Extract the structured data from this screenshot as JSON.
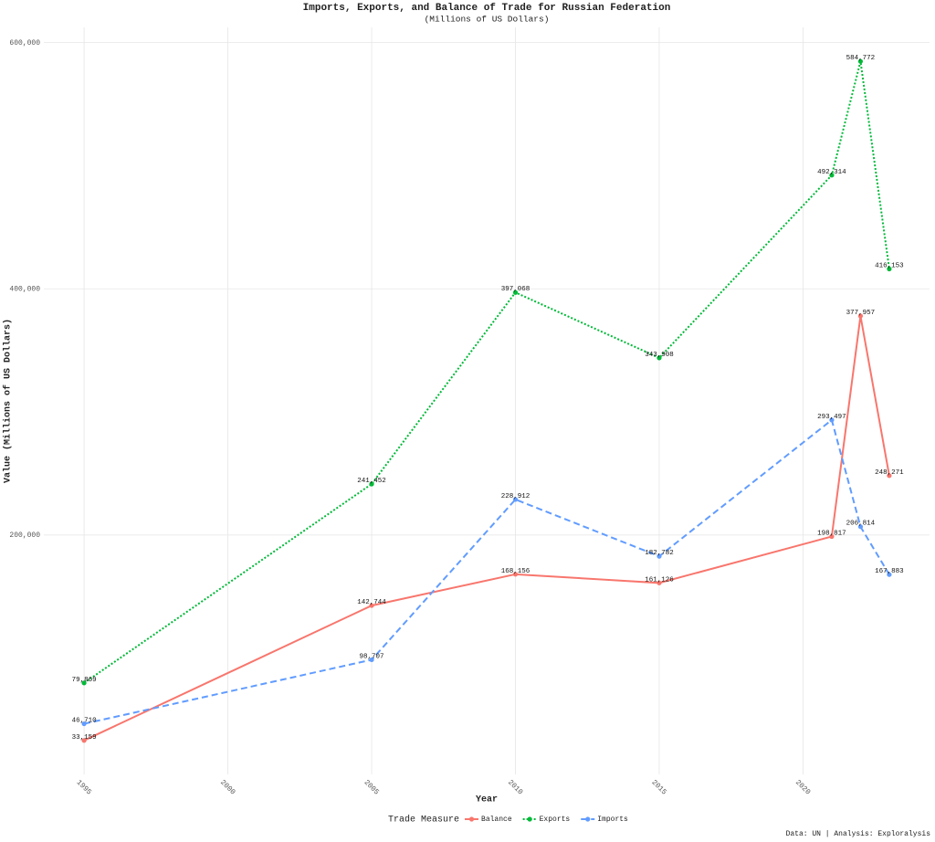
{
  "chart_data": {
    "type": "line",
    "title": "Imports, Exports, and Balance of Trade for Russian Federation",
    "subtitle": "(Millions of US Dollars)",
    "x_label": "Year",
    "y_label": "Value (Millions of US Dollars)",
    "legend_title": "Trade Measure",
    "legend_position": "bottom",
    "caption": "Data: UN | Analysis: Exploralysis",
    "x": [
      1995,
      2005,
      2010,
      2015,
      2021,
      2022,
      2023
    ],
    "series": [
      {
        "name": "Balance",
        "color": "#F8766D",
        "linestyle": "solid",
        "values": [
          33159,
          142744,
          168156,
          161126,
          198817,
          377957,
          248271
        ],
        "value_labels": [
          "33,159",
          "142,744",
          "168,156",
          "161,126",
          "198,817",
          "377,957",
          "248,271"
        ]
      },
      {
        "name": "Exports",
        "color": "#00BA38",
        "linestyle": "dotted",
        "values": [
          79869,
          241452,
          397068,
          343908,
          492314,
          584772,
          416153
        ],
        "value_labels": [
          "79,869",
          "241,452",
          "397,068",
          "343,908",
          "492,314",
          "584,772",
          "416,153"
        ]
      },
      {
        "name": "Imports",
        "color": "#619CFF",
        "linestyle": "dashed",
        "values": [
          46710,
          98707,
          228912,
          182782,
          293497,
          206814,
          167883
        ],
        "value_labels": [
          "46,710",
          "98,707",
          "228,912",
          "182,782",
          "293,497",
          "206,814",
          "167,883"
        ]
      }
    ],
    "xlim": [
      1993.6,
      2024.4
    ],
    "xticks": [
      1995,
      2000,
      2005,
      2010,
      2015,
      2020
    ],
    "ylim": [
      5579,
      612352
    ],
    "yticks": [
      {
        "value": 200000,
        "label": "200,000"
      },
      {
        "value": 400000,
        "label": "400,000"
      },
      {
        "value": 600000,
        "label": "600,000"
      }
    ],
    "grid": true
  }
}
